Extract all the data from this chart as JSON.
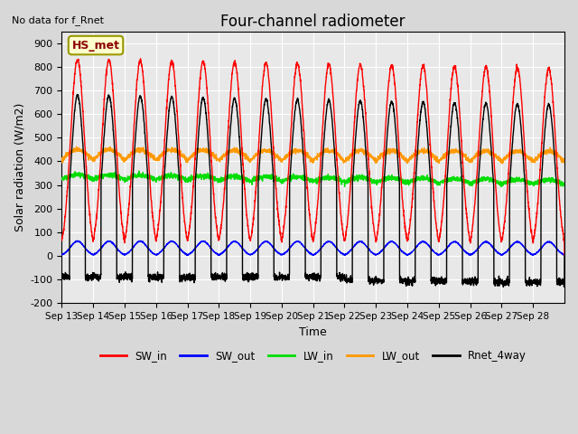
{
  "title": "Four-channel radiometer",
  "top_left_text": "No data for f_Rnet",
  "ylabel": "Solar radiation (W/m2)",
  "xlabel": "Time",
  "ylim": [
    -200,
    950
  ],
  "yticks": [
    -200,
    -100,
    0,
    100,
    200,
    300,
    400,
    500,
    600,
    700,
    800,
    900
  ],
  "x_labels": [
    "Sep 13",
    "Sep 14",
    "Sep 15",
    "Sep 16",
    "Sep 17",
    "Sep 18",
    "Sep 19",
    "Sep 20",
    "Sep 21",
    "Sep 22",
    "Sep 23",
    "Sep 24",
    "Sep 25",
    "Sep 26",
    "Sep 27",
    "Sep 28"
  ],
  "legend_items": [
    {
      "label": "SW_in",
      "color": "#ff0000"
    },
    {
      "label": "SW_out",
      "color": "#0000ff"
    },
    {
      "label": "LW_in",
      "color": "#00dd00"
    },
    {
      "label": "LW_out",
      "color": "#ff9900"
    },
    {
      "label": "Rnet_4way",
      "color": "#000000"
    }
  ],
  "station_box_text": "HS_met",
  "fig_facecolor": "#d8d8d8",
  "ax_facecolor": "#e8e8e8",
  "num_days": 16,
  "SW_in_peak": 830,
  "SW_out_scale": 0.075,
  "LW_in_base": 325,
  "LW_out_base": 405,
  "Rnet_peak": 680,
  "Rnet_night": -90
}
